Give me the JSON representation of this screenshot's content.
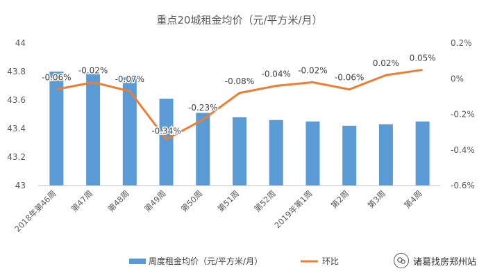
{
  "chart_data": {
    "type": "bar+line",
    "title": "重点20城租金均价（元/平方米/月）",
    "categories": [
      "2018年第46周",
      "第47周",
      "第48周",
      "第49周",
      "第50周",
      "第51周",
      "第52周",
      "2019年第1周",
      "第2周",
      "第3周",
      "第4周"
    ],
    "series": [
      {
        "name": "周度租金均价（元/平方米/月）",
        "kind": "bar",
        "axis": "left",
        "color": "#5b9bd5",
        "values": [
          43.8,
          43.79,
          43.76,
          43.61,
          43.51,
          43.48,
          43.46,
          43.45,
          43.42,
          43.43,
          43.45
        ]
      },
      {
        "name": "环比",
        "kind": "line",
        "axis": "right",
        "color": "#ed7d31",
        "values": [
          -0.06,
          -0.02,
          -0.07,
          -0.34,
          -0.23,
          -0.08,
          -0.04,
          -0.02,
          -0.06,
          0.02,
          0.05
        ],
        "labels": [
          "-0.06%",
          "-0.02%",
          "-0.07%",
          "-0.34%",
          "-0.23%",
          "-0.08%",
          "-0.04%",
          "-0.02%",
          "-0.06%",
          "0.02%",
          "0.05%"
        ]
      }
    ],
    "y_left": {
      "ylim": [
        43,
        44
      ],
      "ticks": [
        "43",
        "43.2",
        "43.4",
        "43.6",
        "43.8",
        "44"
      ]
    },
    "y_right": {
      "ylim": [
        -0.6,
        0.2
      ],
      "ticks": [
        "-0.6%",
        "-0.4%",
        "-0.2%",
        "0%",
        "0.2%"
      ]
    },
    "grid": false,
    "legend": "bottom"
  },
  "watermark": {
    "text": "诸葛找房郑州站"
  }
}
